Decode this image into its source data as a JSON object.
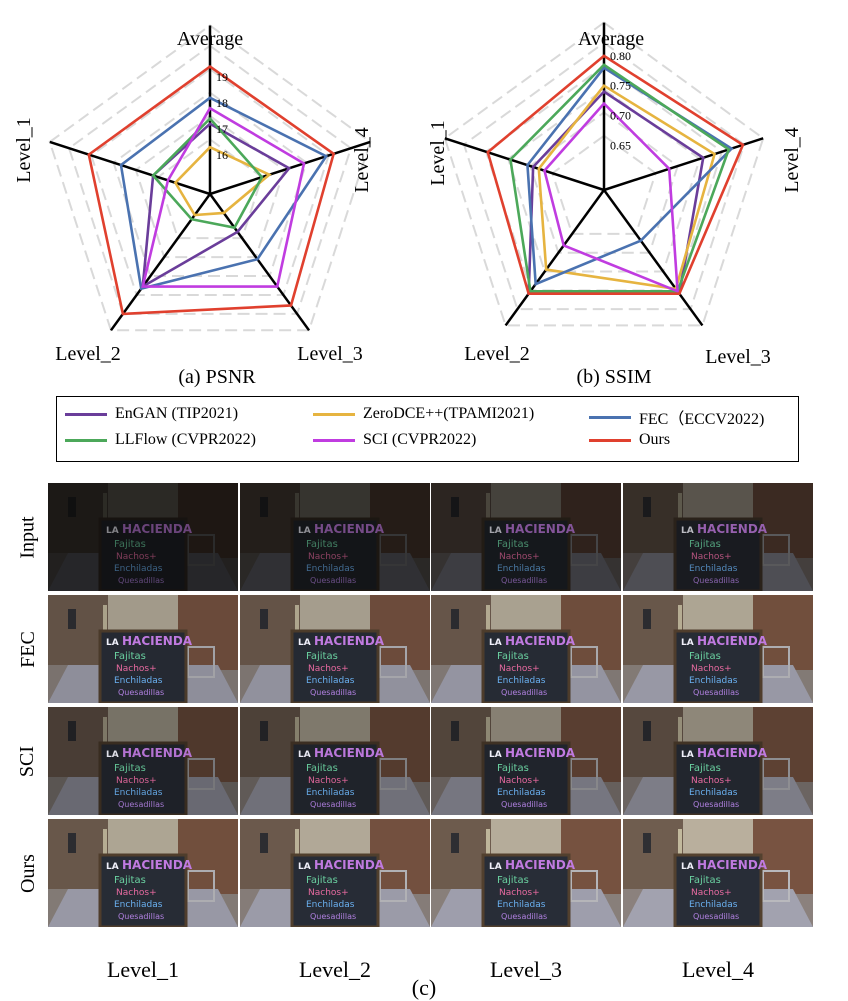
{
  "chart_data": [
    {
      "type": "radar",
      "title": "(a) PSNR",
      "axes": [
        "Average",
        "Level_4",
        "Level_3",
        "Level_2",
        "Level_1"
      ],
      "ticks": [
        "16",
        "17",
        "18",
        "19"
      ],
      "series": [
        {
          "name": "EnGAN (TIP2021)",
          "values": [
            17.2,
            17.7,
            16.3,
            18.9,
            16.8
          ]
        },
        {
          "name": "ZeroDCE++(TPAMI2021)",
          "values": [
            16.3,
            16.9,
            15.4,
            15.5,
            15.9
          ]
        },
        {
          "name": "FEC（ECCV2022)",
          "values": [
            18.2,
            19.2,
            17.6,
            19.0,
            18.1
          ]
        },
        {
          "name": "LLFlow (CVPR2022)",
          "values": [
            17.4,
            16.6,
            16.1,
            15.7,
            16.8
          ]
        },
        {
          "name": "SCI (CVPR2022)",
          "values": [
            17.8,
            18.3,
            18.9,
            18.9,
            16.2
          ]
        },
        {
          "name": "Ours",
          "values": [
            19.4,
            19.5,
            19.8,
            20.2,
            19.4
          ]
        }
      ]
    },
    {
      "type": "radar",
      "title": "(b) SSIM",
      "axes": [
        "Average",
        "Level_4",
        "Level_3",
        "Level_2",
        "Level_1"
      ],
      "ticks": [
        "0.65",
        "0.70",
        "0.75",
        "0.80"
      ],
      "series": [
        {
          "name": "EnGAN (TIP2021)",
          "values": [
            0.74,
            0.75,
            0.79,
            0.79,
            0.7
          ]
        },
        {
          "name": "ZeroDCE++(TPAMI2021)",
          "values": [
            0.75,
            0.77,
            0.78,
            0.74,
            0.69
          ]
        },
        {
          "name": "FEC（ECCV2022)",
          "values": [
            0.78,
            0.8,
            0.68,
            0.77,
            0.71
          ]
        },
        {
          "name": "LLFlow (CVPR2022)",
          "values": [
            0.785,
            0.795,
            0.785,
            0.785,
            0.74
          ]
        },
        {
          "name": "SCI (CVPR2022)",
          "values": [
            0.72,
            0.69,
            0.785,
            0.69,
            0.68
          ]
        },
        {
          "name": "Ours",
          "values": [
            0.8,
            0.82,
            0.79,
            0.79,
            0.78
          ]
        }
      ]
    }
  ],
  "series_colors": [
    "#6a3d9a",
    "#e6b440",
    "#4a72b0",
    "#4ca85a",
    "#c03ce0",
    "#e0402e"
  ],
  "legend": [
    "EnGAN (TIP2021)",
    "ZeroDCE++(TPAMI2021)",
    "FEC（ECCV2022)",
    "LLFlow (CVPR2022)",
    "SCI (CVPR2022)",
    "Ours"
  ],
  "grid": {
    "rows": [
      "Input",
      "FEC",
      "SCI",
      "Ours"
    ],
    "columns": [
      "Level_1",
      "Level_2",
      "Level_3",
      "Level_4"
    ],
    "caption": "(c)",
    "sign_text": [
      "LA",
      "HACIENDA",
      "Fajitas",
      "Nachos+",
      "Enchiladas",
      "Quesadillas"
    ]
  }
}
